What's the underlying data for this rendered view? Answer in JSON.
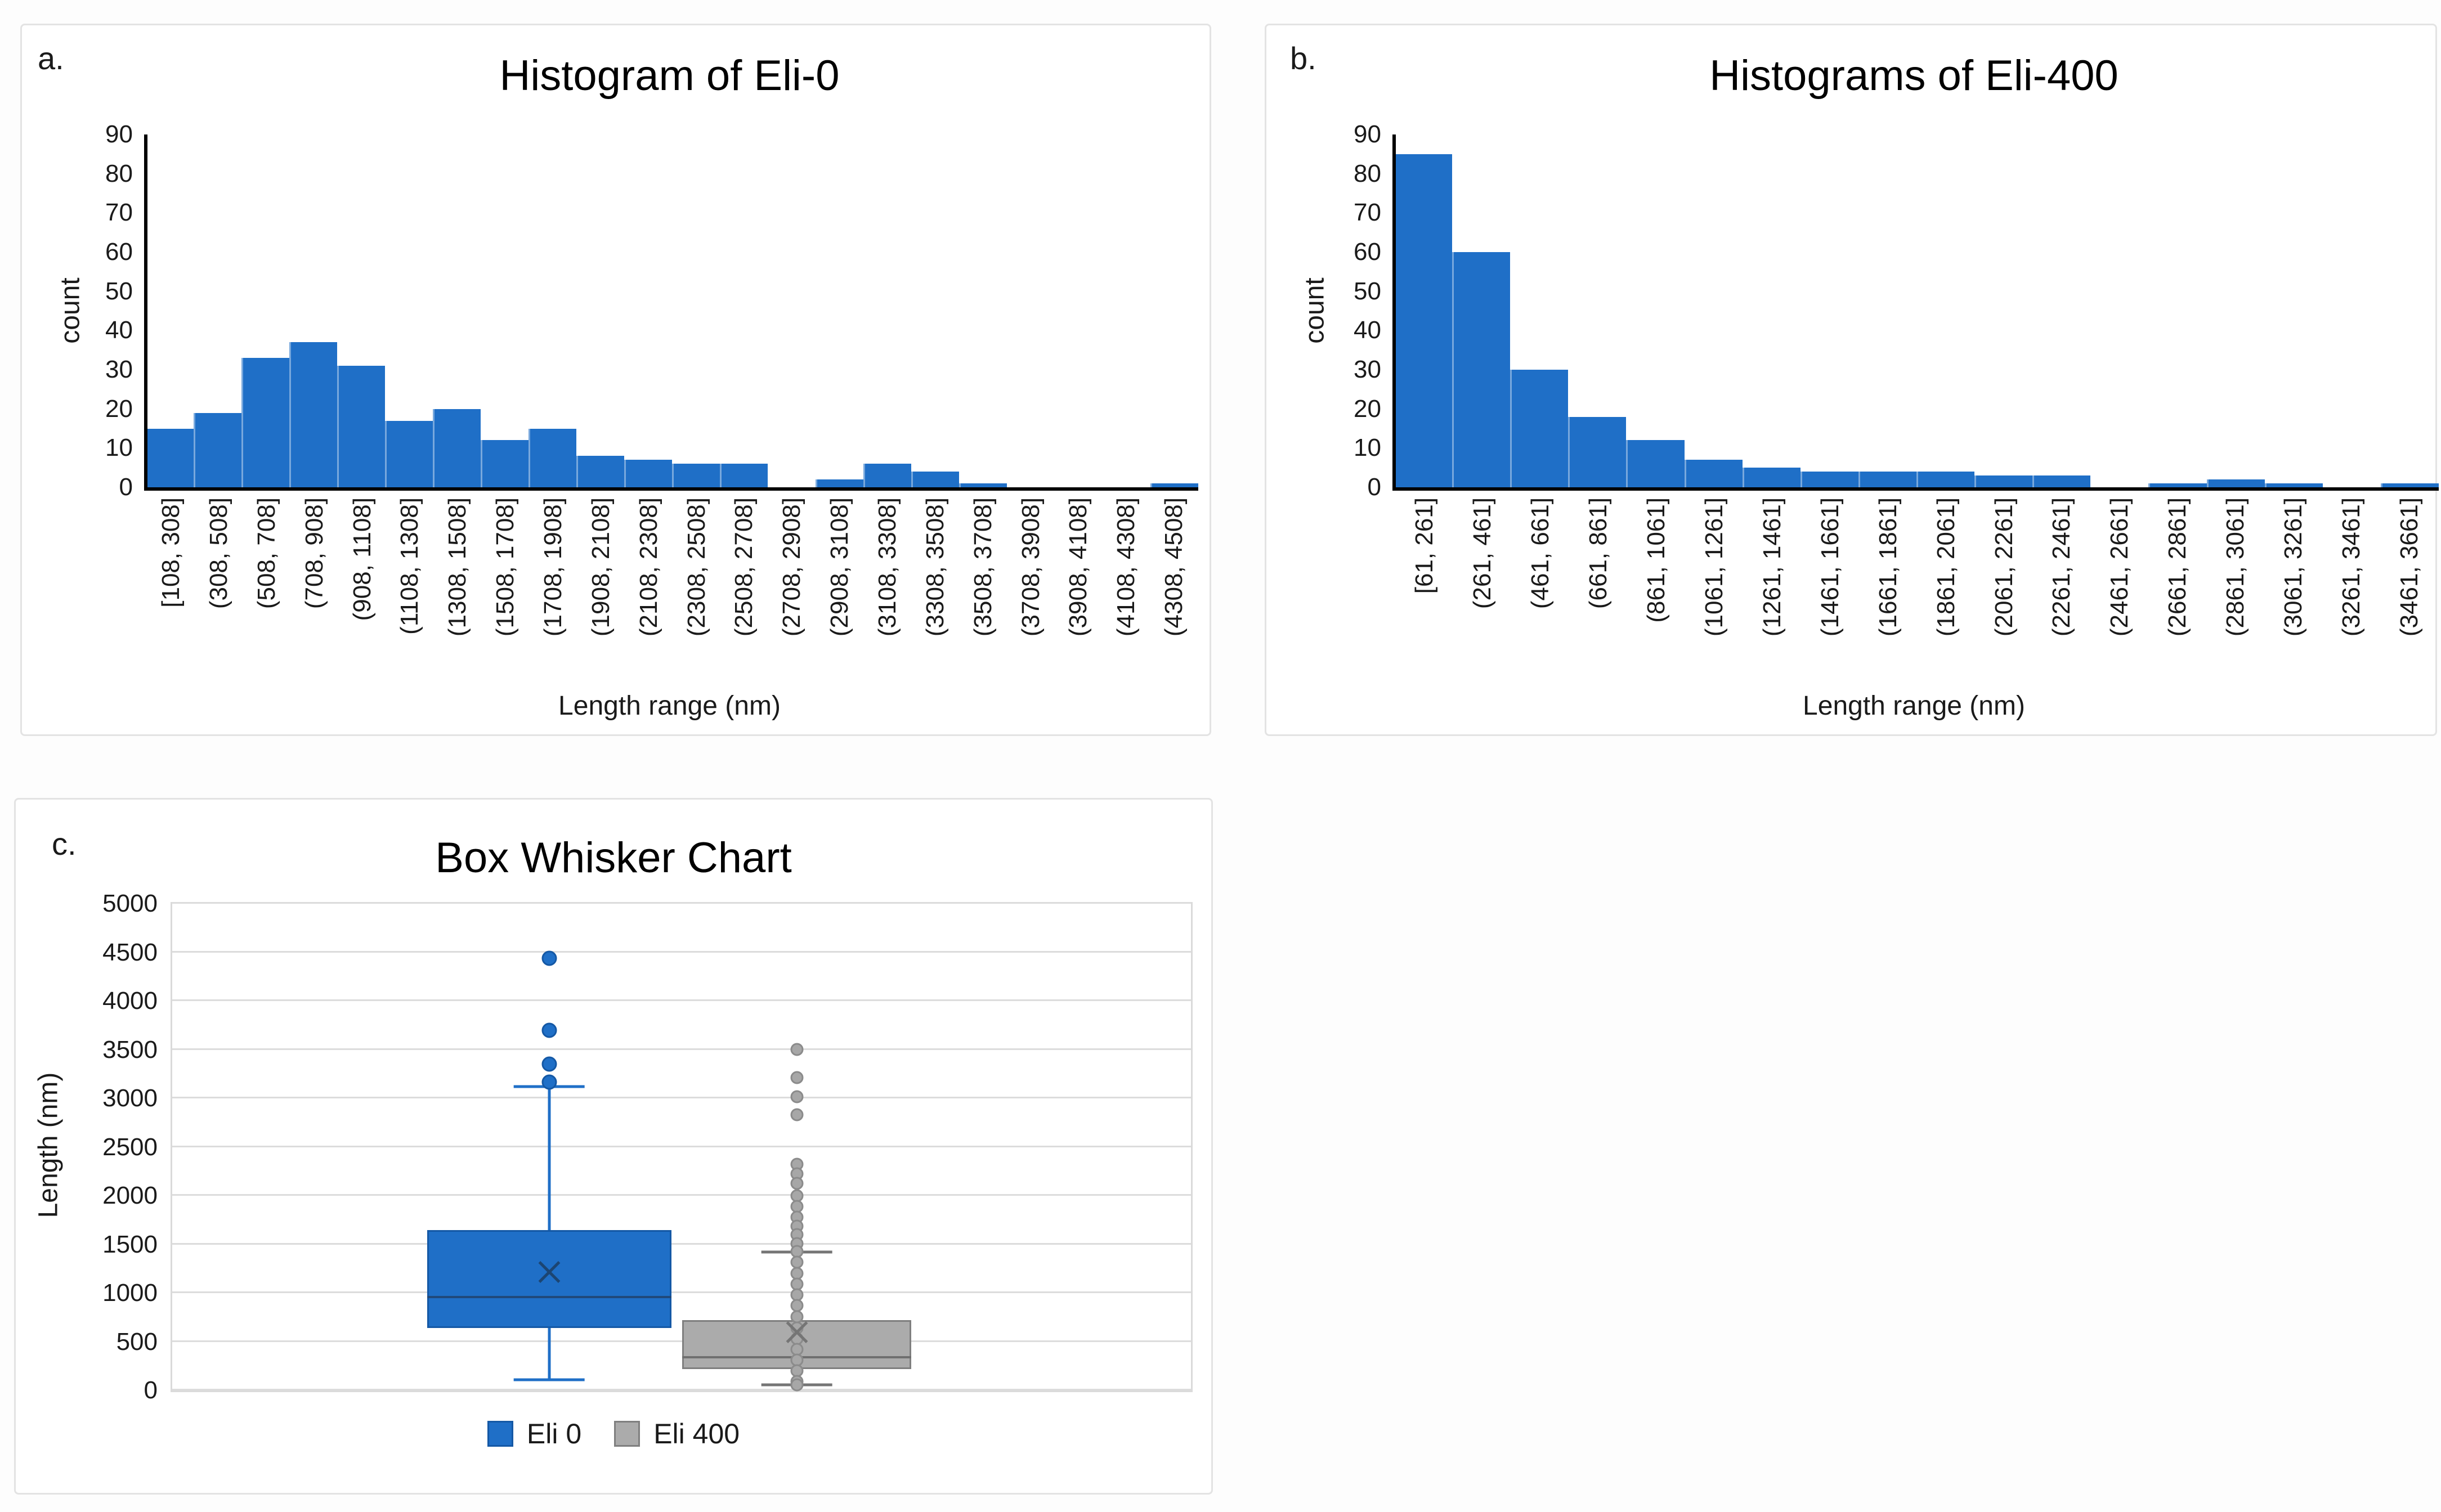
{
  "panels": {
    "a": {
      "letter": "a.",
      "title": "Histogram of Eli-0",
      "ylabel": "count",
      "xlabel": "Length range (nm)"
    },
    "b": {
      "letter": "b.",
      "title": "Histograms of Eli-400",
      "ylabel": "count",
      "xlabel": "Length range (nm)"
    },
    "c": {
      "letter": "c.",
      "title": "Box Whisker Chart",
      "ylabel": "Length (nm)",
      "legend": [
        {
          "label": "Eli 0"
        },
        {
          "label": "Eli 400"
        }
      ]
    }
  },
  "colors": {
    "series_blue": "#1F6FC7",
    "series_blue_border": "#1458A5",
    "series_gray": "#ABABAB",
    "series_gray_border": "#7F7F7F",
    "gridline": "#DCDCDC",
    "axis": "#000000"
  },
  "chart_data": [
    {
      "id": "a",
      "type": "bar",
      "title": "Histogram of Eli-0",
      "xlabel": "Length range (nm)",
      "ylabel": "count",
      "ylim": [
        0,
        90
      ],
      "ytick_step": 10,
      "grid": false,
      "bar_color": "#1F6FC7",
      "categories": [
        "[108, 308]",
        "(308, 508]",
        "(508, 708]",
        "(708, 908]",
        "(908, 1108]",
        "(1108, 1308]",
        "(1308, 1508]",
        "(1508, 1708]",
        "(1708, 1908]",
        "(1908, 2108]",
        "(2108, 2308]",
        "(2308, 2508]",
        "(2508, 2708]",
        "(2708, 2908]",
        "(2908, 3108]",
        "(3108, 3308]",
        "(3308, 3508]",
        "(3508, 3708]",
        "(3708, 3908]",
        "(3908, 4108]",
        "(4108, 4308]",
        "(4308, 4508]"
      ],
      "values": [
        15,
        19,
        33,
        37,
        31,
        17,
        20,
        12,
        15,
        8,
        7,
        6,
        6,
        0,
        2,
        6,
        4,
        1,
        0,
        0,
        0,
        1
      ]
    },
    {
      "id": "b",
      "type": "bar",
      "title": "Histograms of Eli-400",
      "xlabel": "Length range (nm)",
      "ylabel": "count",
      "ylim": [
        0,
        90
      ],
      "ytick_step": 10,
      "grid": false,
      "bar_color": "#1F6FC7",
      "categories": [
        "[61, 261]",
        "(261, 461]",
        "(461, 661]",
        "(661, 861]",
        "(861, 1061]",
        "(1061, 1261]",
        "(1261, 1461]",
        "(1461, 1661]",
        "(1661, 1861]",
        "(1861, 2061]",
        "(2061, 2261]",
        "(2261, 2461]",
        "(2461, 2661]",
        "(2661, 2861]",
        "(2861, 3061]",
        "(3061, 3261]",
        "(3261, 3461]",
        "(3461, 3661]"
      ],
      "values": [
        85,
        60,
        30,
        18,
        12,
        7,
        5,
        4,
        4,
        4,
        3,
        3,
        0,
        1,
        2,
        1,
        0,
        1
      ]
    },
    {
      "id": "c",
      "type": "box",
      "title": "Box Whisker Chart",
      "ylabel": "Length (nm)",
      "ylim": [
        0,
        5000
      ],
      "ytick_step": 500,
      "grid": true,
      "legend_position": "bottom",
      "series": [
        {
          "name": "Eli 0",
          "color": "#1F6FC7",
          "border": "#1458A5",
          "stroke": "#1F6FC7",
          "median_color": "#20497B",
          "mean_color": "#1C4572",
          "dot_fill": "#1F6FC7",
          "dot_border": "#1458A5",
          "center_pct": 37.0,
          "box_w_pct": 24.0,
          "cap_w_pct": 7.0,
          "whisker_low": 110,
          "q1": 640,
          "median": 960,
          "q3": 1650,
          "mean": 1220,
          "whisker_high": 3120,
          "outliers": [
            3170,
            3350,
            3700,
            4440
          ],
          "points": []
        },
        {
          "name": "Eli 400",
          "color": "#ABABAB",
          "border": "#7F7F7F",
          "stroke": "#757575",
          "median_color": "#6F6F6F",
          "mean_color": "#757575",
          "dot_fill": "#A7A7A7",
          "dot_border": "#8B8B8B",
          "center_pct": 61.3,
          "box_w_pct": 22.5,
          "cap_w_pct": 7.0,
          "whisker_low": 60,
          "q1": 220,
          "median": 340,
          "q3": 720,
          "mean": 600,
          "whisker_high": 1420,
          "outliers": [],
          "points": [
            3505,
            3215,
            3015,
            2830,
            2325,
            2225,
            2130,
            2000,
            1890,
            1780,
            1690,
            1600,
            1510,
            1430,
            1320,
            1200,
            1090,
            980,
            870,
            760,
            640,
            530,
            420,
            310,
            200,
            90,
            60
          ]
        }
      ]
    }
  ]
}
